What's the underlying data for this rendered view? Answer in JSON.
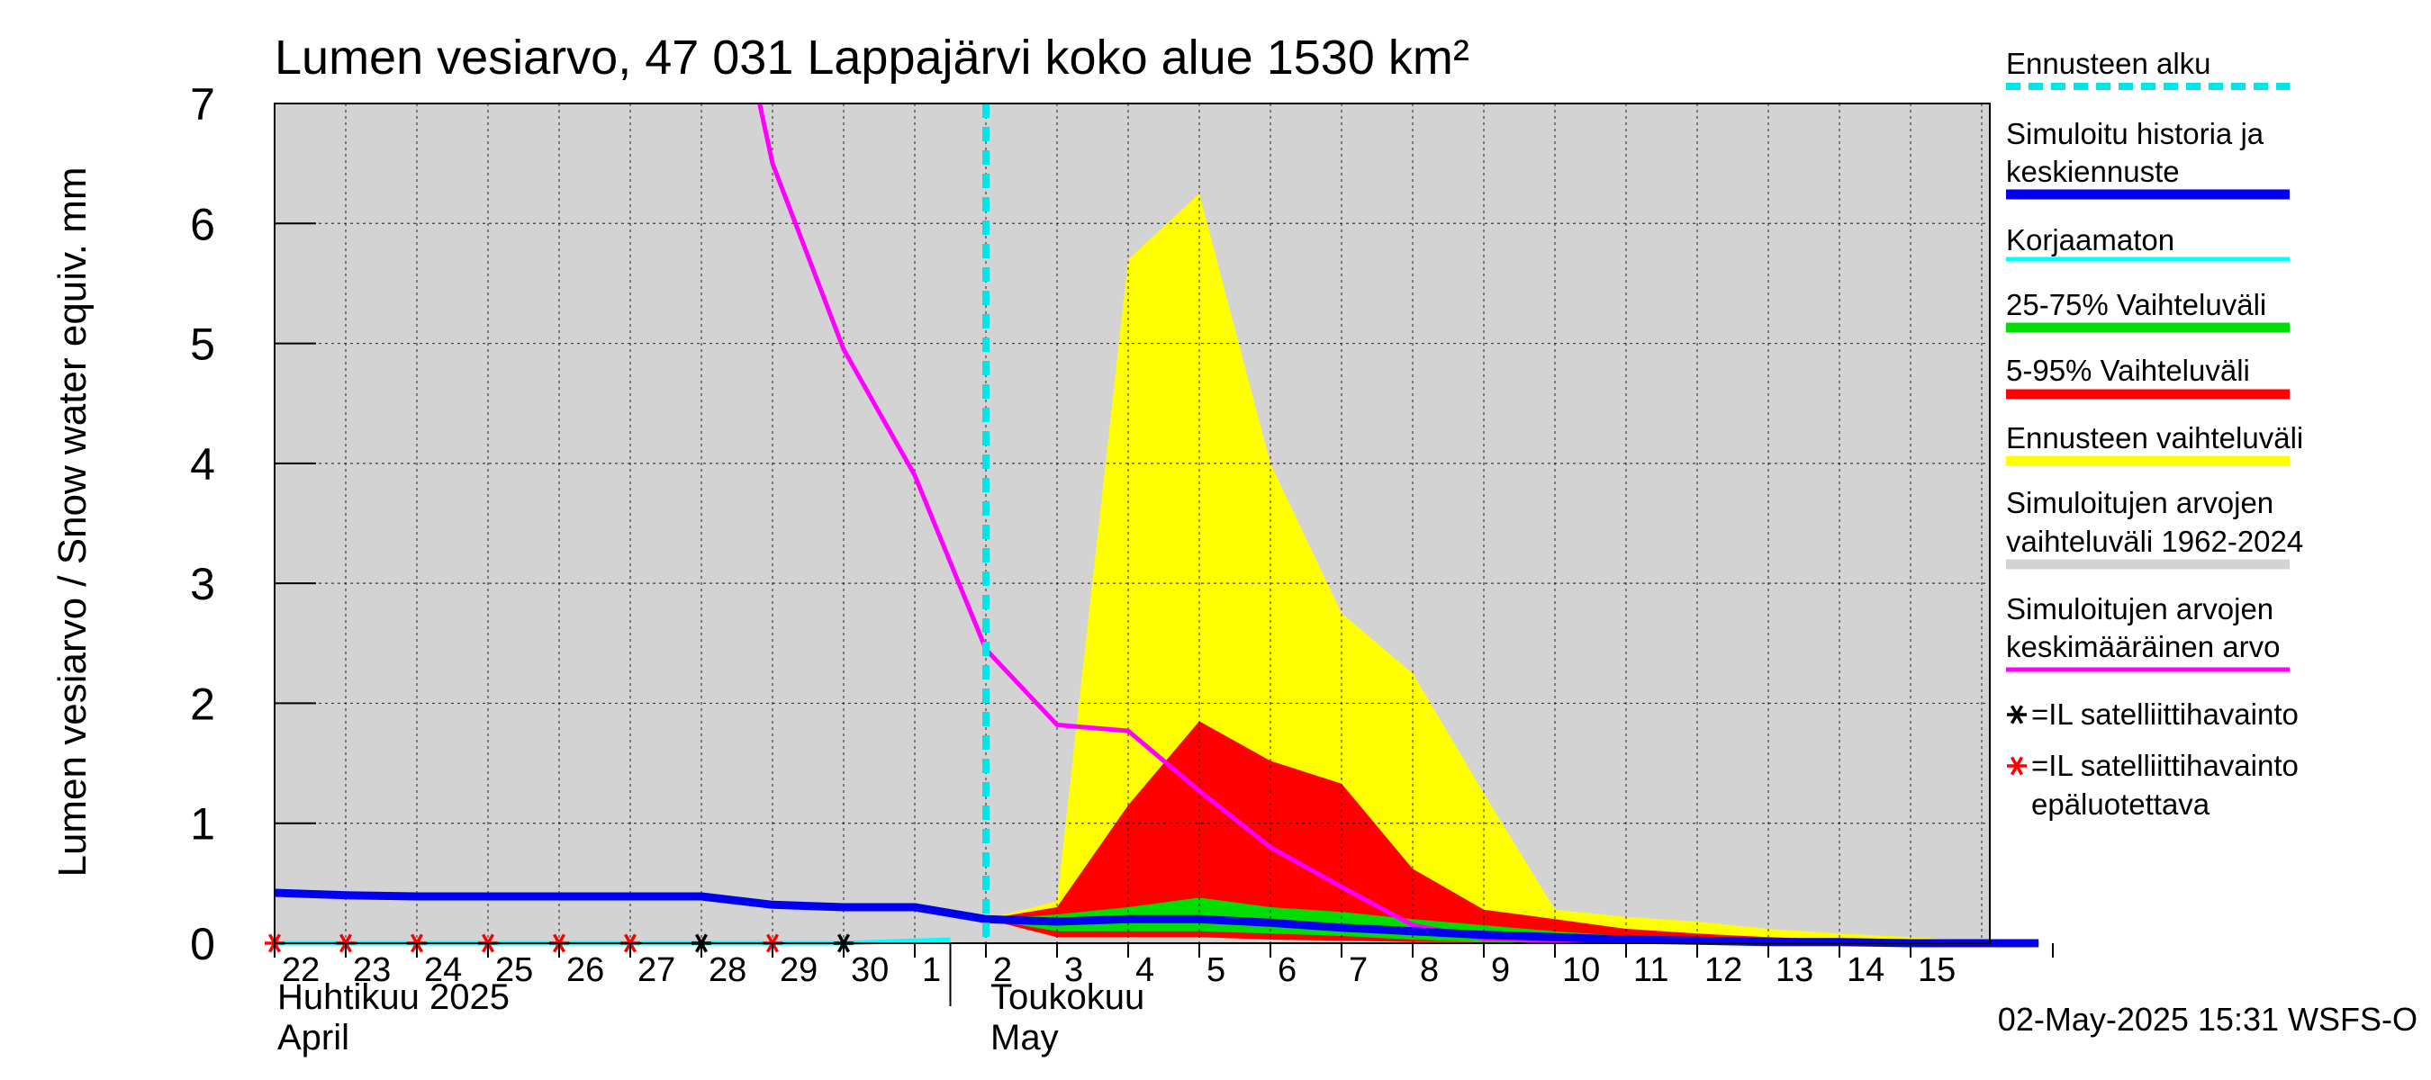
{
  "chart_data": {
    "type": "area",
    "title": "Lumen vesiarvo, 47 031 Lappajärvi koko alue 1530 km²",
    "ylabel": "Lumen vesiarvo / Snow water equiv.    mm",
    "ylim": [
      0,
      7
    ],
    "y_ticks": [
      "0",
      "1",
      "2",
      "3",
      "4",
      "5",
      "6",
      "7"
    ],
    "x_tick_labels": [
      "22",
      "23",
      "24",
      "25",
      "26",
      "27",
      "28",
      "29",
      "30",
      "1",
      "2",
      "3",
      "4",
      "5",
      "6",
      "7",
      "8",
      "9",
      "10",
      "11",
      "12",
      "13",
      "14",
      "15"
    ],
    "month_labels": {
      "april_fi": "Huhtikuu  2025",
      "april_en": "April",
      "may_fi": "Toukokuu",
      "may_en": "May"
    },
    "timestamp": "02-May-2025 15:31 WSFS-O",
    "x_range_days": [
      0,
      24.8
    ],
    "forecast_start_day": 10,
    "series": [
      {
        "name": "Simuloitujen arvojen vaihteluväli 1962-2024",
        "color": "#d3d3d3",
        "lower": 0,
        "upper": 7
      },
      {
        "name": "Ennusteen vaihteluväli",
        "color": "#ffff00",
        "x": [
          10,
          11,
          12,
          13,
          14,
          15,
          16,
          17,
          18,
          19,
          20,
          21,
          22,
          23,
          24,
          24.8
        ],
        "upper": [
          0.2,
          0.35,
          5.7,
          6.25,
          4.0,
          2.75,
          2.25,
          1.25,
          0.28,
          0.22,
          0.18,
          0.12,
          0.08,
          0.05,
          0.02,
          0.01
        ],
        "lower": [
          0.2,
          0.05,
          0.05,
          0.05,
          0.03,
          0.02,
          0.01,
          0.01,
          0,
          0,
          0,
          0,
          0,
          0,
          0,
          0
        ]
      },
      {
        "name": "5-95% Vaihteluväli",
        "color": "#ff0000",
        "x": [
          10,
          11,
          12,
          13,
          14,
          15,
          16,
          17,
          18,
          19,
          20,
          21,
          22,
          23,
          24,
          24.8
        ],
        "upper": [
          0.2,
          0.3,
          1.15,
          1.85,
          1.52,
          1.33,
          0.62,
          0.28,
          0.2,
          0.12,
          0.08,
          0.05,
          0.03,
          0.01,
          0.0,
          0.0
        ],
        "lower": [
          0.2,
          0.05,
          0.05,
          0.05,
          0.03,
          0.02,
          0.01,
          0.01,
          0,
          0,
          0,
          0,
          0,
          0,
          0,
          0
        ]
      },
      {
        "name": "25-75% Vaihteluväli",
        "color": "#00dd00",
        "x": [
          10,
          11,
          12,
          13,
          14,
          15,
          16,
          17,
          18,
          19,
          20,
          21,
          22,
          23,
          24,
          24.8
        ],
        "upper": [
          0.2,
          0.24,
          0.3,
          0.38,
          0.3,
          0.26,
          0.2,
          0.15,
          0.1,
          0.06,
          0.03,
          0.01,
          0,
          0,
          0,
          0
        ],
        "lower": [
          0.2,
          0.1,
          0.1,
          0.1,
          0.08,
          0.06,
          0.03,
          0.01,
          0,
          0,
          0,
          0,
          0,
          0,
          0,
          0
        ]
      },
      {
        "name": "Simuloitu historia ja keskiennuste",
        "color": "#0000ee",
        "x": [
          0,
          1,
          2,
          3,
          4,
          5,
          6,
          7,
          8,
          9,
          10,
          11,
          12,
          13,
          14,
          15,
          16,
          17,
          18,
          19,
          20,
          21,
          22,
          23,
          24,
          24.8
        ],
        "values": [
          0.42,
          0.4,
          0.39,
          0.39,
          0.39,
          0.39,
          0.39,
          0.32,
          0.3,
          0.3,
          0.2,
          0.18,
          0.2,
          0.2,
          0.17,
          0.13,
          0.1,
          0.07,
          0.05,
          0.03,
          0.02,
          0.01,
          0.01,
          0,
          0,
          0
        ]
      },
      {
        "name": "Simuloitujen arvojen keskimääräinen arvo",
        "color": "#ff00ff",
        "x": [
          6.8,
          7,
          8,
          9,
          10,
          11,
          12,
          13,
          14,
          15,
          16,
          17,
          18,
          19,
          20,
          21,
          22,
          23,
          24,
          24.8
        ],
        "values": [
          7.05,
          6.5,
          4.95,
          3.9,
          2.45,
          1.82,
          1.77,
          1.27,
          0.8,
          0.47,
          0.15,
          0.04,
          0.02,
          0.01,
          0.0,
          0.0,
          0.0,
          0.0,
          0.0,
          0.0
        ]
      },
      {
        "name": "Korjaamaton",
        "color": "#00ffff",
        "x": [
          0,
          1,
          2,
          3,
          4,
          5,
          6,
          7,
          8,
          9,
          9.5
        ],
        "values": [
          0,
          0,
          0,
          0,
          0,
          0,
          0,
          0,
          0,
          0.02,
          0.03
        ]
      }
    ],
    "satellite_observations": [
      {
        "day": 0,
        "value": 0,
        "reliable": false
      },
      {
        "day": 1,
        "value": 0,
        "reliable": false
      },
      {
        "day": 2,
        "value": 0,
        "reliable": false
      },
      {
        "day": 3,
        "value": 0,
        "reliable": false
      },
      {
        "day": 4,
        "value": 0,
        "reliable": false
      },
      {
        "day": 5,
        "value": 0,
        "reliable": false
      },
      {
        "day": 6,
        "value": 0,
        "reliable": true
      },
      {
        "day": 7,
        "value": 0,
        "reliable": false
      },
      {
        "day": 8,
        "value": 0,
        "reliable": true
      }
    ],
    "legend": {
      "placement": "right",
      "items": [
        {
          "label": "Ennusteen alku",
          "color": "#00e5e5",
          "style": "dashed"
        },
        {
          "label": "Simuloitu historia ja keskiennuste",
          "color": "#0000ee",
          "style": "thick"
        },
        {
          "label": "Korjaamaton",
          "color": "#00ffff",
          "style": "line"
        },
        {
          "label": "25-75% Vaihteluväli",
          "color": "#00dd00",
          "style": "thick"
        },
        {
          "label": "5-95% Vaihteluväli",
          "color": "#ff0000",
          "style": "thick"
        },
        {
          "label": "Ennusteen vaihteluväli",
          "color": "#ffff00",
          "style": "thick"
        },
        {
          "label": "Simuloitujen arvojen vaihteluväli 1962-2024",
          "color": "#d3d3d3",
          "style": "thick"
        },
        {
          "label": "Simuloitujen arvojen keskimääräinen arvo",
          "color": "#ff00ff",
          "style": "line"
        },
        {
          "label": "=IL satelliittihavainto",
          "color": "#000000",
          "style": "star"
        },
        {
          "label": "=IL satelliittihavainto epäluotettava",
          "color": "#ff0000",
          "style": "star"
        }
      ]
    }
  }
}
